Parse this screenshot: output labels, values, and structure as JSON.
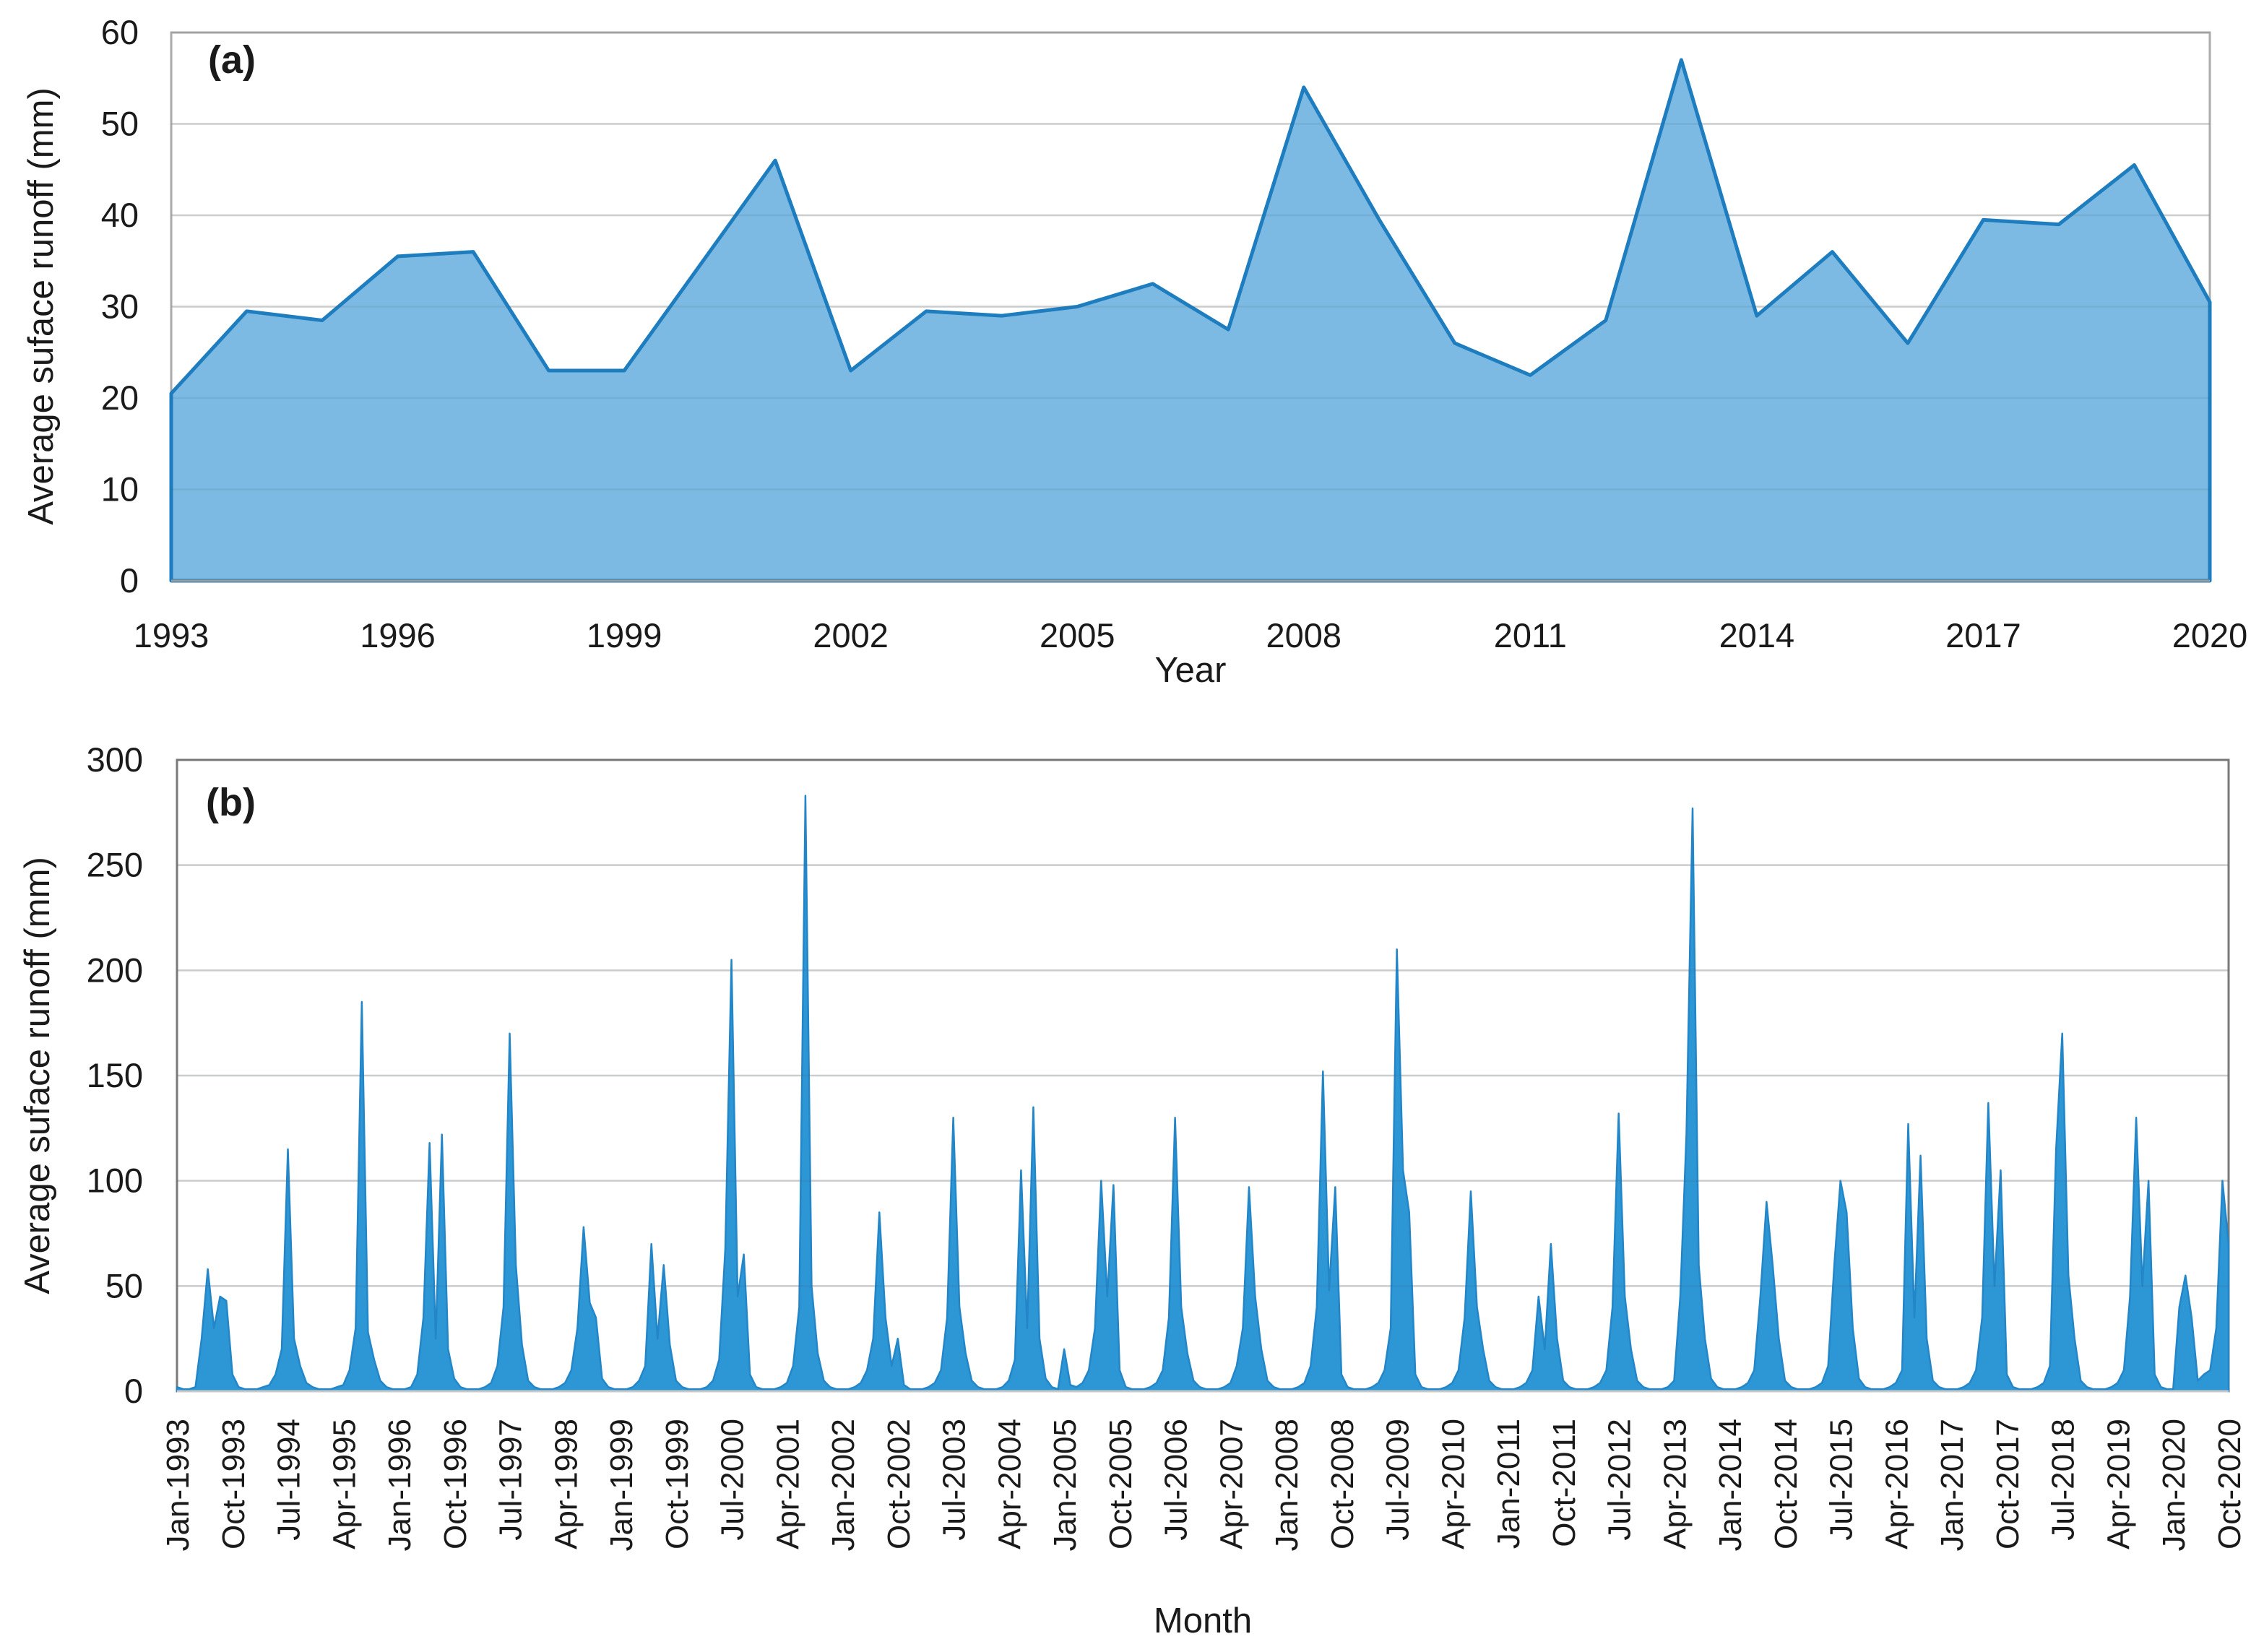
{
  "figure": {
    "background": "#ffffff",
    "panel_count": 2
  },
  "colors": {
    "area_a_fill": "#7CBAE4",
    "area_a_line": "#1E7DBE",
    "area_b_fill": "#2D96D5",
    "area_b_line": "#2386C8",
    "gridline": "#DCDCDC",
    "gridline_overlay": "rgba(70,90,110,0.12)",
    "plot_border_a": "#ABABAB",
    "plot_border_b": "#7A7A7A",
    "axis_line_a": "#9B9B9B",
    "axis_line_b": "#C9C9C9",
    "axis_text": "#1a1a1a"
  },
  "chart_data": [
    {
      "id": "annual-runoff",
      "type": "area",
      "panel_label": "(a)",
      "xlabel": "Year",
      "ylabel": "Average suface runoff (mm)",
      "x": [
        1993,
        1994,
        1995,
        1996,
        1997,
        1998,
        1999,
        2000,
        2001,
        2002,
        2003,
        2004,
        2005,
        2006,
        2007,
        2008,
        2009,
        2010,
        2011,
        2012,
        2013,
        2014,
        2015,
        2016,
        2017,
        2018,
        2019,
        2020
      ],
      "values": [
        20.5,
        29.5,
        28.5,
        35.5,
        36,
        23,
        23,
        34.5,
        46,
        23,
        29.5,
        29,
        30,
        32.5,
        27.5,
        54,
        39.5,
        26,
        22.5,
        28.5,
        57,
        29,
        36,
        26,
        39.5,
        39,
        45.5,
        30.5
      ],
      "ylim": [
        0,
        60
      ],
      "yticks": [
        0,
        10,
        20,
        30,
        40,
        50,
        60
      ],
      "x_tick_labels": [
        "1993",
        "1996",
        "1999",
        "2002",
        "2005",
        "2008",
        "2011",
        "2014",
        "2017",
        "2020"
      ],
      "x_tick_step": 3,
      "grid": true,
      "legend": false
    },
    {
      "id": "monthly-runoff",
      "type": "area",
      "panel_label": "(b)",
      "xlabel": "Month",
      "ylabel": "Average suface runoff (mm)",
      "x_start": "Jan-1993",
      "x_end": "Oct-2020",
      "months_per_point": 1,
      "values": [
        2,
        1,
        1,
        2,
        25,
        58,
        30,
        45,
        43,
        8,
        2,
        1,
        1,
        1,
        2,
        3,
        8,
        20,
        115,
        25,
        12,
        4,
        2,
        1,
        1,
        1,
        2,
        3,
        10,
        30,
        185,
        28,
        15,
        5,
        2,
        1,
        1,
        1,
        2,
        8,
        35,
        118,
        25,
        122,
        20,
        6,
        2,
        1,
        1,
        1,
        2,
        4,
        12,
        40,
        170,
        60,
        22,
        5,
        2,
        1,
        1,
        1,
        2,
        4,
        10,
        30,
        78,
        42,
        35,
        6,
        2,
        1,
        1,
        1,
        2,
        5,
        12,
        70,
        25,
        60,
        22,
        5,
        2,
        1,
        1,
        1,
        2,
        5,
        15,
        68,
        205,
        45,
        65,
        8,
        2,
        1,
        1,
        1,
        2,
        4,
        12,
        40,
        283,
        50,
        18,
        5,
        2,
        1,
        1,
        1,
        2,
        4,
        10,
        25,
        85,
        35,
        12,
        25,
        3,
        1,
        1,
        1,
        2,
        4,
        10,
        35,
        130,
        40,
        18,
        5,
        2,
        1,
        1,
        1,
        2,
        5,
        15,
        105,
        30,
        135,
        25,
        6,
        2,
        1,
        20,
        3,
        2,
        4,
        10,
        30,
        100,
        45,
        98,
        10,
        2,
        1,
        1,
        1,
        2,
        4,
        10,
        35,
        130,
        40,
        18,
        5,
        2,
        1,
        1,
        1,
        2,
        4,
        12,
        30,
        97,
        45,
        20,
        5,
        2,
        1,
        1,
        1,
        2,
        4,
        12,
        40,
        152,
        48,
        97,
        8,
        2,
        1,
        1,
        1,
        2,
        4,
        10,
        30,
        210,
        105,
        85,
        8,
        2,
        1,
        1,
        1,
        2,
        4,
        10,
        35,
        95,
        40,
        20,
        5,
        2,
        1,
        1,
        1,
        2,
        4,
        10,
        45,
        20,
        70,
        25,
        5,
        2,
        1,
        1,
        1,
        2,
        4,
        10,
        40,
        132,
        45,
        20,
        5,
        2,
        1,
        1,
        1,
        2,
        5,
        45,
        122,
        277,
        60,
        25,
        6,
        2,
        1,
        1,
        1,
        2,
        4,
        10,
        45,
        90,
        60,
        25,
        5,
        2,
        1,
        1,
        1,
        2,
        4,
        12,
        60,
        100,
        85,
        30,
        6,
        2,
        1,
        1,
        1,
        2,
        4,
        10,
        127,
        35,
        112,
        25,
        5,
        2,
        1,
        1,
        1,
        2,
        4,
        10,
        35,
        137,
        50,
        105,
        8,
        2,
        1,
        1,
        1,
        2,
        4,
        12,
        115,
        170,
        55,
        25,
        5,
        2,
        1,
        1,
        1,
        2,
        4,
        10,
        45,
        130,
        50,
        100,
        8,
        2,
        1,
        1,
        40,
        55,
        35,
        5,
        8,
        10,
        30,
        100,
        70
      ],
      "ylim": [
        0,
        300
      ],
      "yticks": [
        0,
        50,
        100,
        150,
        200,
        250,
        300
      ],
      "x_tick_labels": [
        "Jan-1993",
        "Oct-1993",
        "Jul-1994",
        "Apr-1995",
        "Jan-1996",
        "Oct-1996",
        "Jul-1997",
        "Apr-1998",
        "Jan-1999",
        "Oct-1999",
        "Jul-2000",
        "Apr-2001",
        "Jan-2002",
        "Oct-2002",
        "Jul-2003",
        "Apr-2004",
        "Jan-2005",
        "Oct-2005",
        "Jul-2006",
        "Apr-2007",
        "Jan-2008",
        "Oct-2008",
        "Jul-2009",
        "Apr-2010",
        "Jan-2011",
        "Oct-2011",
        "Jul-2012",
        "Apr-2013",
        "Jan-2014",
        "Oct-2014",
        "Jul-2015",
        "Apr-2016",
        "Jan-2017",
        "Oct-2017",
        "Jul-2018",
        "Apr-2019",
        "Jan-2020",
        "Oct-2020"
      ],
      "x_tick_step": 9,
      "grid": true,
      "legend": false
    }
  ]
}
